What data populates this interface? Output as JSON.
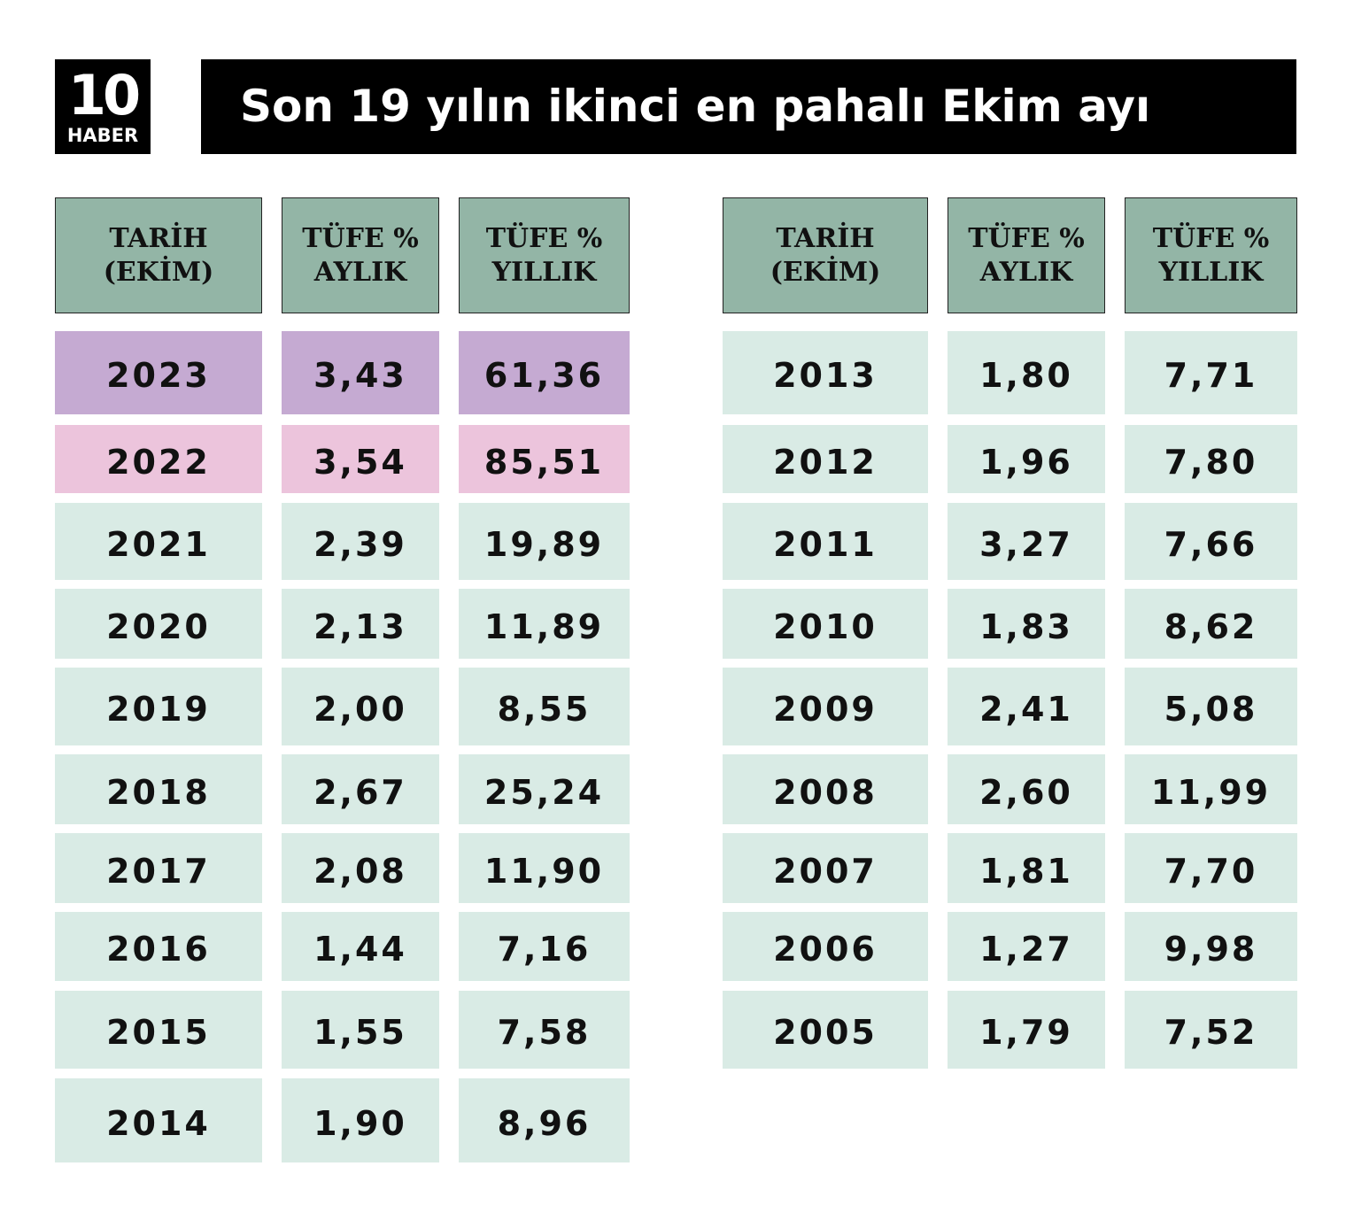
{
  "logo": {
    "number": "10",
    "text": "HABER"
  },
  "title": "Son 19 yılın ikinci en pahalı Ekim ayı",
  "tables": [
    {
      "headers": [
        [
          "TARİH",
          "(EKİM)"
        ],
        [
          "TÜFE %",
          "AYLIK"
        ],
        [
          "TÜFE %",
          "YILLIK"
        ]
      ],
      "rows": [
        [
          "2023",
          "3,43",
          "61,36"
        ],
        [
          "2022",
          "3,54",
          "85,51"
        ],
        [
          "2021",
          "2,39",
          "19,89"
        ],
        [
          "2020",
          "2,13",
          "11,89"
        ],
        [
          "2019",
          "2,00",
          "8,55"
        ],
        [
          "2018",
          "2,67",
          "25,24"
        ],
        [
          "2017",
          "2,08",
          "11,90"
        ],
        [
          "2016",
          "1,44",
          "7,16"
        ],
        [
          "2015",
          "1,55",
          "7,58"
        ],
        [
          "2014",
          "1,90",
          "8,96"
        ]
      ]
    },
    {
      "headers": [
        [
          "TARİH",
          "(EKİM)"
        ],
        [
          "TÜFE %",
          "AYLIK"
        ],
        [
          "TÜFE %",
          "YILLIK"
        ]
      ],
      "rows": [
        [
          "2013",
          "1,80",
          "7,71"
        ],
        [
          "2012",
          "1,96",
          "7,80"
        ],
        [
          "2011",
          "3,27",
          "7,66"
        ],
        [
          "2010",
          "1,83",
          "8,62"
        ],
        [
          "2009",
          "2,41",
          "5,08"
        ],
        [
          "2008",
          "2,60",
          "11,99"
        ],
        [
          "2007",
          "1,81",
          "7,70"
        ],
        [
          "2006",
          "1,27",
          "9,98"
        ],
        [
          "2005",
          "1,79",
          "7,52"
        ]
      ]
    }
  ]
}
